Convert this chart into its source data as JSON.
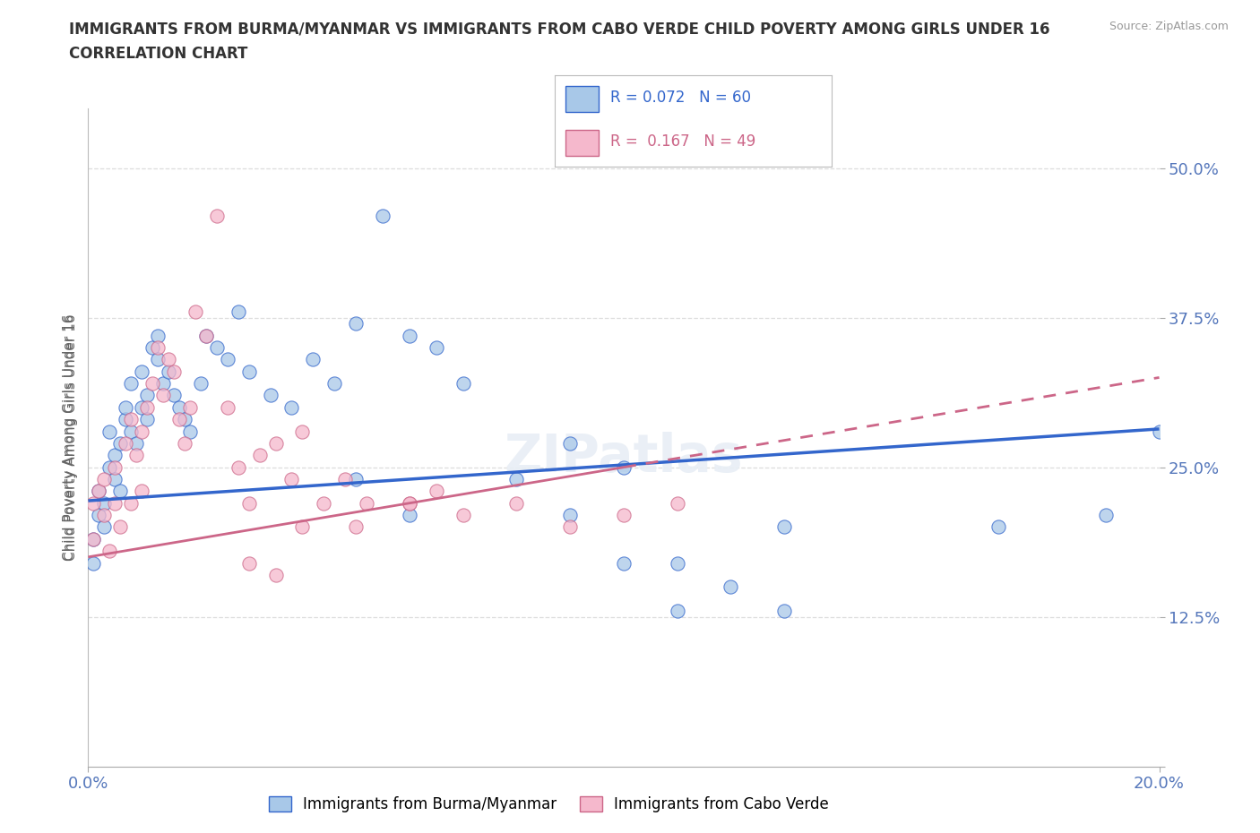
{
  "title_line1": "IMMIGRANTS FROM BURMA/MYANMAR VS IMMIGRANTS FROM CABO VERDE CHILD POVERTY AMONG GIRLS UNDER 16",
  "title_line2": "CORRELATION CHART",
  "source": "Source: ZipAtlas.com",
  "ylabel": "Child Poverty Among Girls Under 16",
  "xlim": [
    0.0,
    0.2
  ],
  "ylim": [
    0.0,
    0.55
  ],
  "xticks": [
    0.0,
    0.2
  ],
  "xtick_labels": [
    "0.0%",
    "20.0%"
  ],
  "yticks": [
    0.0,
    0.125,
    0.25,
    0.375,
    0.5
  ],
  "ytick_labels": [
    "",
    "12.5%",
    "25.0%",
    "37.5%",
    "50.0%"
  ],
  "color_blue": "#a8c8e8",
  "color_pink": "#f5b8cc",
  "trend_blue": "#3366cc",
  "trend_pink": "#cc6688",
  "R_blue": 0.072,
  "N_blue": 60,
  "R_pink": 0.167,
  "N_pink": 49,
  "blue_intercept": 0.222,
  "blue_slope": 0.3,
  "pink_intercept": 0.175,
  "pink_slope": 0.75,
  "blue_x": [
    0.001,
    0.001,
    0.002,
    0.002,
    0.003,
    0.003,
    0.004,
    0.004,
    0.005,
    0.005,
    0.006,
    0.006,
    0.007,
    0.007,
    0.008,
    0.008,
    0.009,
    0.01,
    0.01,
    0.011,
    0.011,
    0.012,
    0.013,
    0.013,
    0.014,
    0.015,
    0.016,
    0.017,
    0.018,
    0.019,
    0.021,
    0.022,
    0.024,
    0.026,
    0.028,
    0.03,
    0.034,
    0.038,
    0.042,
    0.046,
    0.05,
    0.055,
    0.06,
    0.065,
    0.08,
    0.09,
    0.1,
    0.11,
    0.12,
    0.13,
    0.05,
    0.06,
    0.07,
    0.09,
    0.1,
    0.11,
    0.13,
    0.17,
    0.19,
    0.2
  ],
  "blue_y": [
    0.19,
    0.17,
    0.23,
    0.21,
    0.2,
    0.22,
    0.28,
    0.25,
    0.24,
    0.26,
    0.23,
    0.27,
    0.29,
    0.3,
    0.28,
    0.32,
    0.27,
    0.33,
    0.3,
    0.29,
    0.31,
    0.35,
    0.34,
    0.36,
    0.32,
    0.33,
    0.31,
    0.3,
    0.29,
    0.28,
    0.32,
    0.36,
    0.35,
    0.34,
    0.38,
    0.33,
    0.31,
    0.3,
    0.34,
    0.32,
    0.37,
    0.46,
    0.36,
    0.35,
    0.24,
    0.27,
    0.17,
    0.17,
    0.15,
    0.2,
    0.24,
    0.21,
    0.32,
    0.21,
    0.25,
    0.13,
    0.13,
    0.2,
    0.21,
    0.28
  ],
  "pink_x": [
    0.001,
    0.001,
    0.002,
    0.003,
    0.003,
    0.004,
    0.005,
    0.005,
    0.006,
    0.007,
    0.008,
    0.008,
    0.009,
    0.01,
    0.01,
    0.011,
    0.012,
    0.013,
    0.014,
    0.015,
    0.016,
    0.017,
    0.018,
    0.019,
    0.02,
    0.022,
    0.024,
    0.026,
    0.028,
    0.03,
    0.032,
    0.035,
    0.038,
    0.04,
    0.044,
    0.048,
    0.052,
    0.06,
    0.065,
    0.07,
    0.08,
    0.09,
    0.1,
    0.11,
    0.03,
    0.035,
    0.04,
    0.05,
    0.06
  ],
  "pink_y": [
    0.22,
    0.19,
    0.23,
    0.21,
    0.24,
    0.18,
    0.25,
    0.22,
    0.2,
    0.27,
    0.22,
    0.29,
    0.26,
    0.23,
    0.28,
    0.3,
    0.32,
    0.35,
    0.31,
    0.34,
    0.33,
    0.29,
    0.27,
    0.3,
    0.38,
    0.36,
    0.46,
    0.3,
    0.25,
    0.22,
    0.26,
    0.27,
    0.24,
    0.28,
    0.22,
    0.24,
    0.22,
    0.22,
    0.23,
    0.21,
    0.22,
    0.2,
    0.21,
    0.22,
    0.17,
    0.16,
    0.2,
    0.2,
    0.22
  ],
  "watermark": "ZIPatlas",
  "background_color": "#ffffff",
  "grid_color": "#dddddd",
  "title_color": "#333333",
  "tick_color": "#5577bb",
  "source_color": "#999999"
}
